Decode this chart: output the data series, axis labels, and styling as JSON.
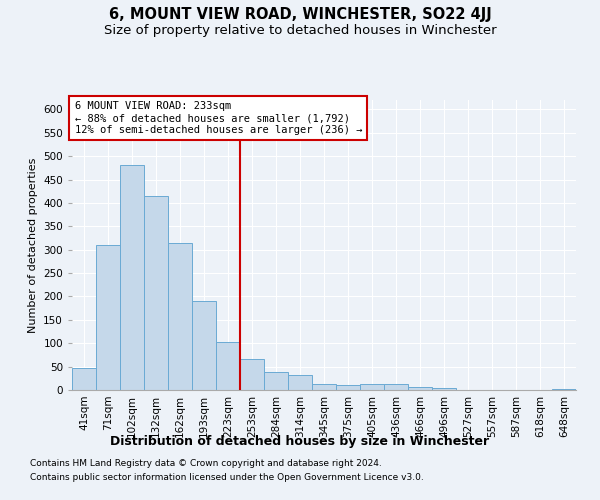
{
  "title": "6, MOUNT VIEW ROAD, WINCHESTER, SO22 4JJ",
  "subtitle": "Size of property relative to detached houses in Winchester",
  "xlabel": "Distribution of detached houses by size in Winchester",
  "ylabel": "Number of detached properties",
  "categories": [
    "41sqm",
    "71sqm",
    "102sqm",
    "132sqm",
    "162sqm",
    "193sqm",
    "223sqm",
    "253sqm",
    "284sqm",
    "314sqm",
    "345sqm",
    "375sqm",
    "405sqm",
    "436sqm",
    "466sqm",
    "496sqm",
    "527sqm",
    "557sqm",
    "587sqm",
    "618sqm",
    "648sqm"
  ],
  "values": [
    46,
    311,
    480,
    415,
    314,
    190,
    103,
    67,
    39,
    32,
    13,
    11,
    13,
    12,
    6,
    4,
    1,
    0,
    1,
    1,
    2
  ],
  "bar_color": "#c5d8ea",
  "bar_edge_color": "#6aaad4",
  "vline_x": 6.5,
  "vline_color": "#cc0000",
  "annotation_title": "6 MOUNT VIEW ROAD: 233sqm",
  "annotation_line1": "← 88% of detached houses are smaller (1,792)",
  "annotation_line2": "12% of semi-detached houses are larger (236) →",
  "annotation_box_facecolor": "#ffffff",
  "annotation_box_edgecolor": "#cc0000",
  "ylim": [
    0,
    620
  ],
  "yticks": [
    0,
    50,
    100,
    150,
    200,
    250,
    300,
    350,
    400,
    450,
    500,
    550,
    600
  ],
  "footer_line1": "Contains HM Land Registry data © Crown copyright and database right 2024.",
  "footer_line2": "Contains public sector information licensed under the Open Government Licence v3.0.",
  "background_color": "#edf2f8",
  "plot_background_color": "#edf2f8",
  "grid_color": "#ffffff",
  "title_fontsize": 10.5,
  "subtitle_fontsize": 9.5,
  "xlabel_fontsize": 9,
  "ylabel_fontsize": 8,
  "tick_fontsize": 7.5,
  "annotation_fontsize": 7.5,
  "footer_fontsize": 6.5
}
